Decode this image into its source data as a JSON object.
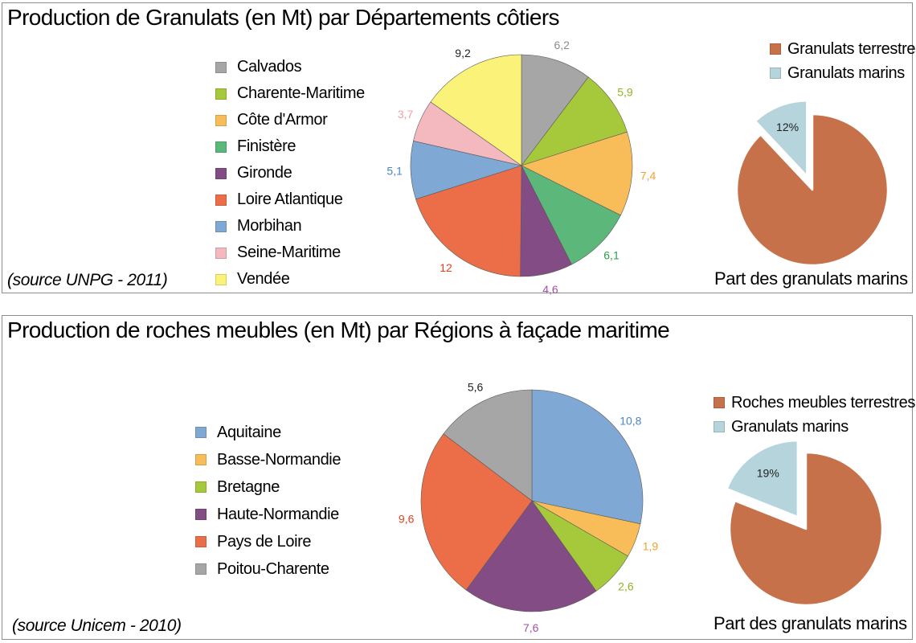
{
  "top": {
    "title": "Production de Granulats (en Mt) par Départements côtiers",
    "source": "(source UNPG - 2011)",
    "share_caption": "Part des granulats marins"
  },
  "bottom": {
    "title": "Production de roches meubles (en Mt) par Régions à façade maritime",
    "source": "(source Unicem - 2010)",
    "share_caption": "Part des granulats marins"
  },
  "chart_data": [
    {
      "type": "pie",
      "title": "Production de Granulats (en Mt) par Départements côtiers",
      "legend_position": "left",
      "categories": [
        "Calvados",
        "Charente-Maritime",
        "Côte d'Armor",
        "Finistère",
        "Gironde",
        "Loire Atlantique",
        "Morbihan",
        "Seine-Maritime",
        "Vendée"
      ],
      "values": [
        6.2,
        5.9,
        7.4,
        6.1,
        4.6,
        12,
        5.1,
        3.7,
        9.2
      ],
      "labels": [
        "6,2",
        "5,9",
        "7,4",
        "6,1",
        "4,6",
        "12",
        "5,1",
        "3,7",
        "9,2"
      ],
      "colors": [
        "#a6a6a6",
        "#a6c93b",
        "#f8bd59",
        "#5cb77a",
        "#844c84",
        "#ec6e48",
        "#80a8d4",
        "#f4b8bf",
        "#fbf27a"
      ],
      "label_colors": [
        "#8c8c8c",
        "#8fb424",
        "#f2a230",
        "#2f9e4f",
        "#a64ea6",
        "#e0421e",
        "#4a86c8",
        "#f0a1ab",
        "#222222"
      ]
    },
    {
      "type": "pie",
      "legend_position": "top",
      "categories": [
        "Granulats terrestres",
        "Granulats marins"
      ],
      "values": [
        88,
        12
      ],
      "labels": [
        "",
        "12%"
      ],
      "colors": [
        "#c7714a",
        "#b5d4dc"
      ]
    },
    {
      "type": "pie",
      "title": "Production de roches meubles (en Mt) par Régions à façade maritime",
      "legend_position": "left",
      "categories": [
        "Aquitaine",
        "Basse-Normandie",
        "Bretagne",
        "Haute-Normandie",
        "Pays de Loire",
        "Poitou-Charente"
      ],
      "values": [
        10.8,
        1.9,
        2.6,
        7.6,
        9.6,
        5.6
      ],
      "labels": [
        "10,8",
        "1,9",
        "2,6",
        "7,6",
        "9,6",
        "5,6"
      ],
      "colors": [
        "#80a8d4",
        "#f8bd59",
        "#a6c93b",
        "#844c84",
        "#ec6e48",
        "#a6a6a6"
      ],
      "label_colors": [
        "#4a86c8",
        "#f2a230",
        "#8fb424",
        "#a64ea6",
        "#e0421e",
        "#222222"
      ]
    },
    {
      "type": "pie",
      "legend_position": "top",
      "categories": [
        "Roches meubles terrestres",
        "Granulats marins"
      ],
      "values": [
        81,
        19
      ],
      "labels": [
        "",
        "19%"
      ],
      "colors": [
        "#c7714a",
        "#b5d4dc"
      ]
    }
  ]
}
